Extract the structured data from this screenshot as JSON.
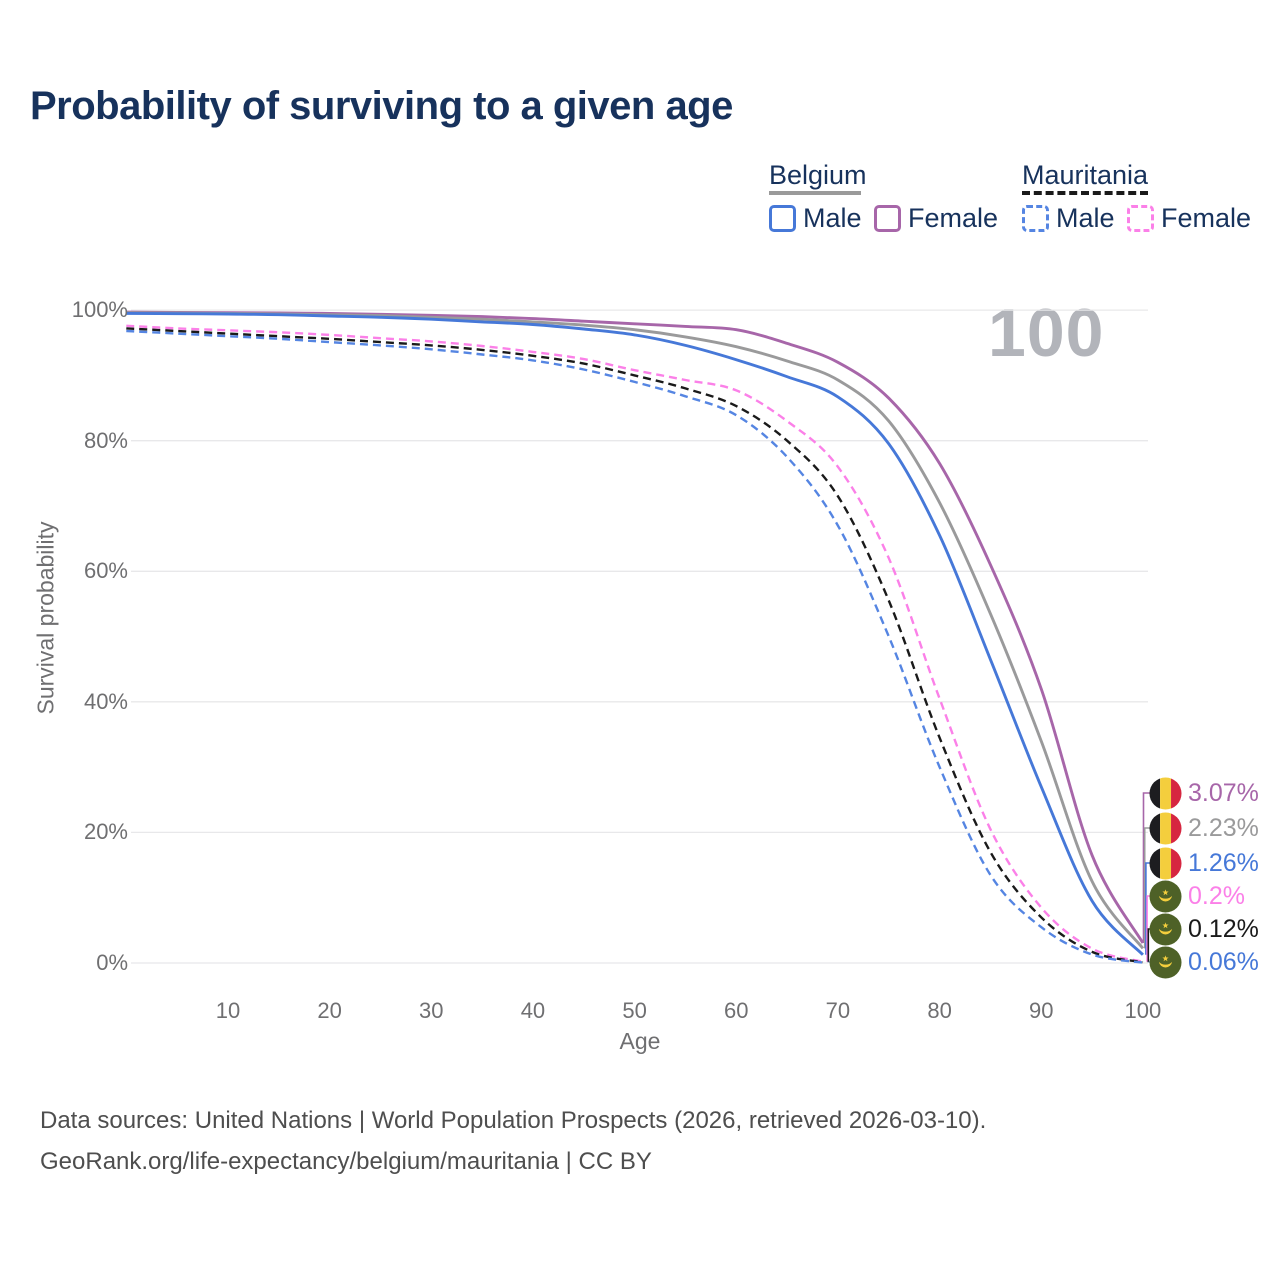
{
  "title": "Probability of surviving to a given age",
  "watermark_age": "100",
  "legend": {
    "groups": [
      {
        "country": "Belgium",
        "line_style": "solid",
        "underline_color": "#9a9a9a",
        "items": [
          {
            "label": "Male",
            "color": "#4678d8",
            "dashed": false
          },
          {
            "label": "Female",
            "color": "#a766a9",
            "dashed": false
          }
        ]
      },
      {
        "country": "Mauritania",
        "line_style": "dashed",
        "underline_color": "#1a1a1a",
        "items": [
          {
            "label": "Male",
            "color": "#5585e2",
            "dashed": true
          },
          {
            "label": "Female",
            "color": "#fb80e8",
            "dashed": true
          }
        ]
      }
    ]
  },
  "axes": {
    "x_title": "Age",
    "y_title": "Survival probability",
    "y_ticks": [
      "100%",
      "80%",
      "60%",
      "40%",
      "20%",
      "0%"
    ],
    "x_ticks": [
      "10",
      "20",
      "30",
      "40",
      "50",
      "60",
      "70",
      "80",
      "90",
      "100"
    ]
  },
  "end_labels": [
    {
      "flag": "belgium",
      "country": "Belgium",
      "series": "Female",
      "value": "3.07%",
      "color": "#a766a9"
    },
    {
      "flag": "belgium",
      "country": "Belgium",
      "series": "Total",
      "value": "2.23%",
      "color": "#9a9a9b"
    },
    {
      "flag": "belgium",
      "country": "Belgium",
      "series": "Male",
      "value": "1.26%",
      "color": "#4678d8"
    },
    {
      "flag": "mauritania",
      "country": "Mauritania",
      "series": "Female",
      "value": "0.2%",
      "color": "#fb80e8"
    },
    {
      "flag": "mauritania",
      "country": "Mauritania",
      "series": "Total",
      "value": "0.12%",
      "color": "#1a1a1a"
    },
    {
      "flag": "mauritania",
      "country": "Mauritania",
      "series": "Male",
      "value": "0.06%",
      "color": "#4678d8"
    }
  ],
  "footer": {
    "line1": "Data sources: United Nations | World Population Prospects (2026, retrieved 2026-03-10).",
    "line2": "GeoRank.org/life-expectancy/belgium/mauritania | CC BY"
  },
  "chart_data": {
    "type": "line",
    "title": "Probability of surviving to a given age",
    "xlabel": "Age",
    "ylabel": "Survival probability",
    "xlim": [
      0,
      100
    ],
    "ylim": [
      0,
      100
    ],
    "grid": "horizontal",
    "y_gridlines_pct": [
      100,
      80,
      60,
      40,
      20,
      0
    ],
    "x": [
      0,
      5,
      10,
      15,
      20,
      25,
      30,
      35,
      40,
      45,
      50,
      55,
      60,
      65,
      70,
      75,
      80,
      85,
      90,
      95,
      100
    ],
    "series": [
      {
        "id": "belgium-female",
        "name": "Belgium Female",
        "color": "#a766a9",
        "dashed": false,
        "values": [
          99.7,
          99.65,
          99.6,
          99.55,
          99.5,
          99.35,
          99.2,
          99.0,
          98.7,
          98.3,
          97.9,
          97.5,
          97.0,
          94.9,
          92.0,
          86.5,
          76.5,
          61.0,
          42.0,
          16.5,
          3.07
        ]
      },
      {
        "id": "belgium-total",
        "name": "Belgium Total",
        "color": "#9a9a9b",
        "dashed": false,
        "values": [
          99.6,
          99.55,
          99.5,
          99.4,
          99.3,
          99.15,
          98.9,
          98.6,
          98.2,
          97.7,
          97.0,
          95.9,
          94.4,
          92.2,
          89.3,
          83.0,
          70.5,
          53.5,
          34.0,
          12.5,
          2.23
        ]
      },
      {
        "id": "belgium-male",
        "name": "Belgium Male",
        "color": "#4678d8",
        "dashed": false,
        "values": [
          99.5,
          99.45,
          99.4,
          99.3,
          99.1,
          98.9,
          98.6,
          98.2,
          97.8,
          97.1,
          96.2,
          94.6,
          92.4,
          89.8,
          86.7,
          79.5,
          65.5,
          46.5,
          27.0,
          9.5,
          1.26
        ]
      },
      {
        "id": "mauritania-female",
        "name": "Mauritania Female",
        "color": "#fb80e8",
        "dashed": true,
        "values": [
          97.6,
          97.2,
          96.9,
          96.6,
          96.2,
          95.7,
          95.2,
          94.5,
          93.6,
          92.5,
          90.8,
          89.3,
          87.7,
          83.0,
          76.0,
          62.0,
          40.5,
          20.5,
          8.5,
          2.2,
          0.2
        ]
      },
      {
        "id": "mauritania-total",
        "name": "Mauritania Total",
        "color": "#1a1a1a",
        "dashed": true,
        "values": [
          97.2,
          96.8,
          96.4,
          96.0,
          95.6,
          95.1,
          94.6,
          93.9,
          93.0,
          91.8,
          90.0,
          88.0,
          85.3,
          80.0,
          71.5,
          55.5,
          34.5,
          17.0,
          7.0,
          1.7,
          0.12
        ]
      },
      {
        "id": "mauritania-male",
        "name": "Mauritania Male",
        "color": "#5585e2",
        "dashed": true,
        "values": [
          96.8,
          96.4,
          96.0,
          95.6,
          95.1,
          94.6,
          94.0,
          93.2,
          92.3,
          90.9,
          89.0,
          86.8,
          83.9,
          77.5,
          67.0,
          50.0,
          30.0,
          13.5,
          5.5,
          1.3,
          0.06
        ]
      }
    ]
  }
}
